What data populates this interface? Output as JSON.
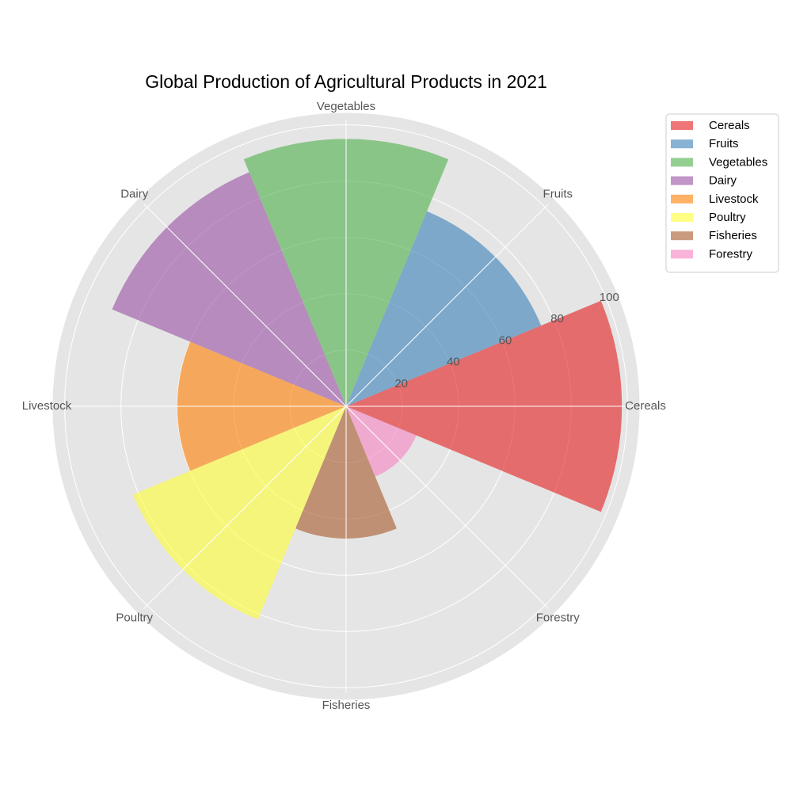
{
  "chart_data": {
    "type": "polar-bar",
    "title": "Global Production of Agricultural Products in 2021",
    "categories": [
      "Cereals",
      "Fruits",
      "Vegetables",
      "Dairy",
      "Livestock",
      "Poultry",
      "Fisheries",
      "Forestry"
    ],
    "values": [
      98,
      75,
      95,
      90,
      60,
      82,
      47,
      27
    ],
    "colors": [
      "#e41a1c",
      "#377eb8",
      "#4daf4a",
      "#984ea3",
      "#ff7f00",
      "#ffff33",
      "#a65628",
      "#f781bf"
    ],
    "bar_alpha": 0.6,
    "radial_ticks": [
      20,
      40,
      60,
      80,
      100
    ],
    "rlim": [
      0,
      103
    ],
    "grid": true,
    "background": "#e5e5e5",
    "grid_color": "#ffffff",
    "legend": {
      "placement": "upper-right-outside",
      "entries": [
        "Cereals",
        "Fruits",
        "Vegetables",
        "Dairy",
        "Livestock",
        "Poultry",
        "Fisheries",
        "Forestry"
      ]
    }
  }
}
